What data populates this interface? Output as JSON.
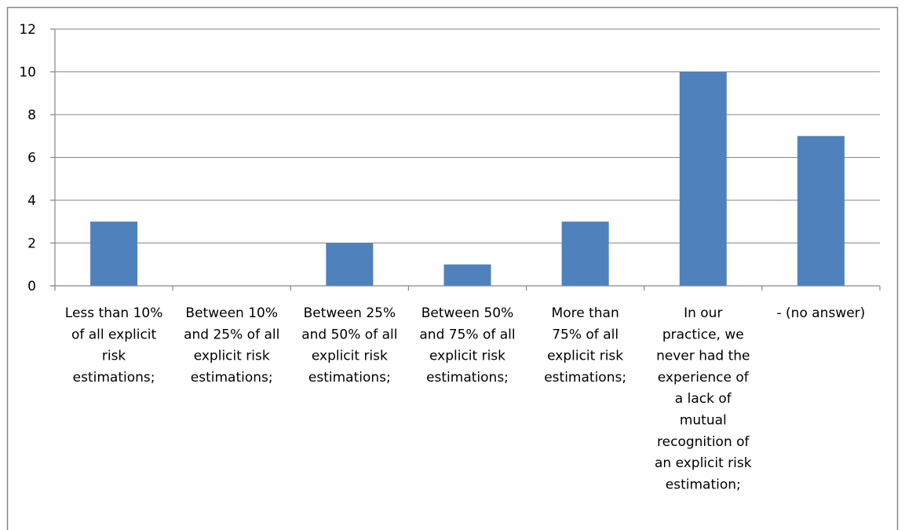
{
  "chart_data": {
    "type": "bar",
    "title": "",
    "xlabel": "",
    "ylabel": "",
    "ylim": [
      0,
      12
    ],
    "yticks": [
      0,
      2,
      4,
      6,
      8,
      10,
      12
    ],
    "grid": true,
    "legend": "none",
    "categories": [
      [
        "Less than 10%",
        "of all explicit",
        "risk",
        "estimations;"
      ],
      [
        "Between 10%",
        "and 25% of all",
        "explicit risk",
        "estimations;"
      ],
      [
        "Between 25%",
        "and 50% of all",
        "explicit risk",
        "estimations;"
      ],
      [
        "Between 50%",
        "and 75% of all",
        "explicit risk",
        "estimations;"
      ],
      [
        "More than",
        "75% of all",
        "explicit risk",
        "estimations;"
      ],
      [
        "In our",
        "practice, we",
        "never had the",
        "experience of",
        "a lack of",
        "mutual",
        "recognition of",
        "an explicit risk",
        "estimation;"
      ],
      [
        "- (no answer)"
      ]
    ],
    "values": [
      3,
      0,
      2,
      1,
      3,
      10,
      7
    ],
    "colors": {
      "bar": "#4f81bd",
      "grid": "#868686",
      "axis": "#868686",
      "frame": "#868686"
    }
  }
}
